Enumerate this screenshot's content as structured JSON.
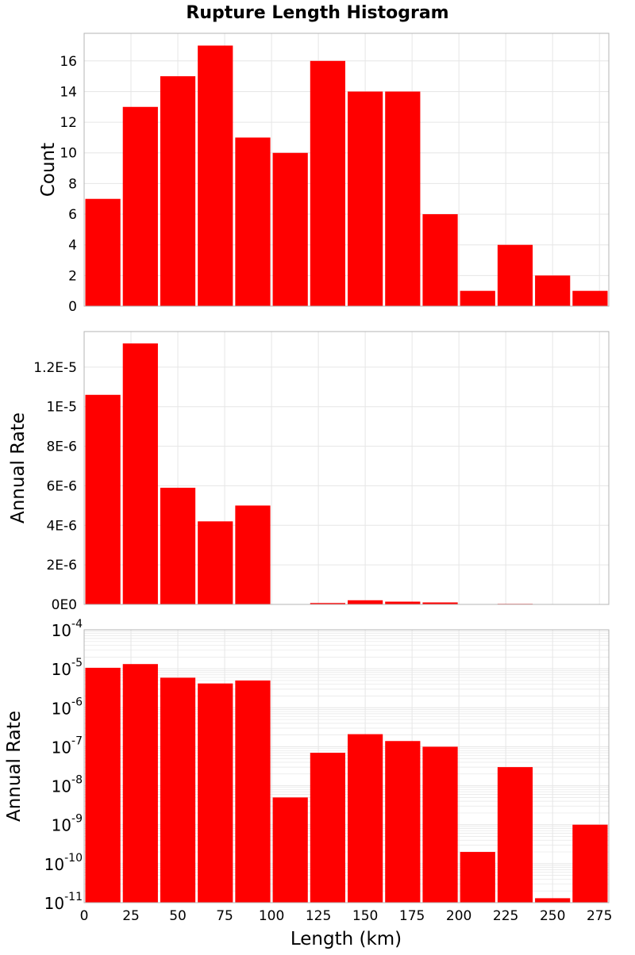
{
  "figure": {
    "title": "Rupture Length Histogram",
    "xlabel": "Length (km)",
    "x_ticks": [
      "0",
      "25",
      "50",
      "75",
      "100",
      "125",
      "150",
      "175",
      "200",
      "225",
      "250",
      "275"
    ],
    "bar_color": "#FF0000",
    "grid_color": "#E6E6E6",
    "frame_color": "#B4B4B4"
  },
  "chart_data": [
    {
      "type": "bar",
      "title": "Rupture Length Histogram",
      "xlabel": "Length (km)",
      "ylabel": "Count",
      "bin_width": 20,
      "x": [
        10,
        30,
        50,
        70,
        90,
        110,
        130,
        150,
        170,
        190,
        210,
        230,
        250,
        270
      ],
      "values": [
        7,
        13,
        15,
        17,
        11,
        10,
        16,
        14,
        14,
        6,
        1,
        4,
        2,
        1
      ],
      "xlim": [
        0,
        280
      ],
      "ylim": [
        0,
        17.8
      ],
      "yscale": "linear",
      "y_ticks": [
        0,
        2,
        4,
        6,
        8,
        10,
        12,
        14,
        16
      ],
      "y_tick_labels": [
        "0",
        "2",
        "4",
        "6",
        "8",
        "10",
        "12",
        "14",
        "16"
      ],
      "grid": true
    },
    {
      "type": "bar",
      "xlabel": "Length (km)",
      "ylabel": "Annual Rate",
      "bin_width": 20,
      "x": [
        10,
        30,
        50,
        70,
        90,
        110,
        130,
        150,
        170,
        190,
        210,
        230,
        250,
        270
      ],
      "values": [
        1.06e-05,
        1.32e-05,
        5.9e-06,
        4.2e-06,
        5e-06,
        5e-09,
        7e-08,
        2.1e-07,
        1.4e-07,
        1e-07,
        2e-10,
        3e-08,
        1.3e-11,
        1e-09
      ],
      "xlim": [
        0,
        280
      ],
      "ylim": [
        0,
        1.38e-05
      ],
      "yscale": "linear",
      "y_ticks": [
        0,
        2e-06,
        4e-06,
        6e-06,
        8e-06,
        1e-05,
        1.2e-05
      ],
      "y_tick_labels": [
        "0E0",
        "2E-6",
        "4E-6",
        "6E-6",
        "8E-6",
        "1E-5",
        "1.2E-5"
      ],
      "grid": true
    },
    {
      "type": "bar",
      "xlabel": "Length (km)",
      "ylabel": "Annual Rate",
      "bin_width": 20,
      "x": [
        10,
        30,
        50,
        70,
        90,
        110,
        130,
        150,
        170,
        190,
        210,
        230,
        250,
        270
      ],
      "values": [
        1.06e-05,
        1.32e-05,
        5.9e-06,
        4.2e-06,
        5e-06,
        5e-09,
        7e-08,
        2.1e-07,
        1.4e-07,
        1e-07,
        2e-10,
        3e-08,
        1.3e-11,
        1e-09
      ],
      "xlim": [
        0,
        280
      ],
      "ylim": [
        1e-11,
        0.0001
      ],
      "yscale": "log",
      "y_ticks": [
        -11,
        -10,
        -9,
        -8,
        -7,
        -6,
        -5,
        -4
      ],
      "y_tick_labels": [
        {
          "base": "10",
          "exp": "-11"
        },
        {
          "base": "10",
          "exp": "-10"
        },
        {
          "base": "10",
          "exp": "-9"
        },
        {
          "base": "10",
          "exp": "-8"
        },
        {
          "base": "10",
          "exp": "-7"
        },
        {
          "base": "10",
          "exp": "-6"
        },
        {
          "base": "10",
          "exp": "-5"
        },
        {
          "base": "10",
          "exp": "-4"
        }
      ],
      "grid": true
    }
  ]
}
